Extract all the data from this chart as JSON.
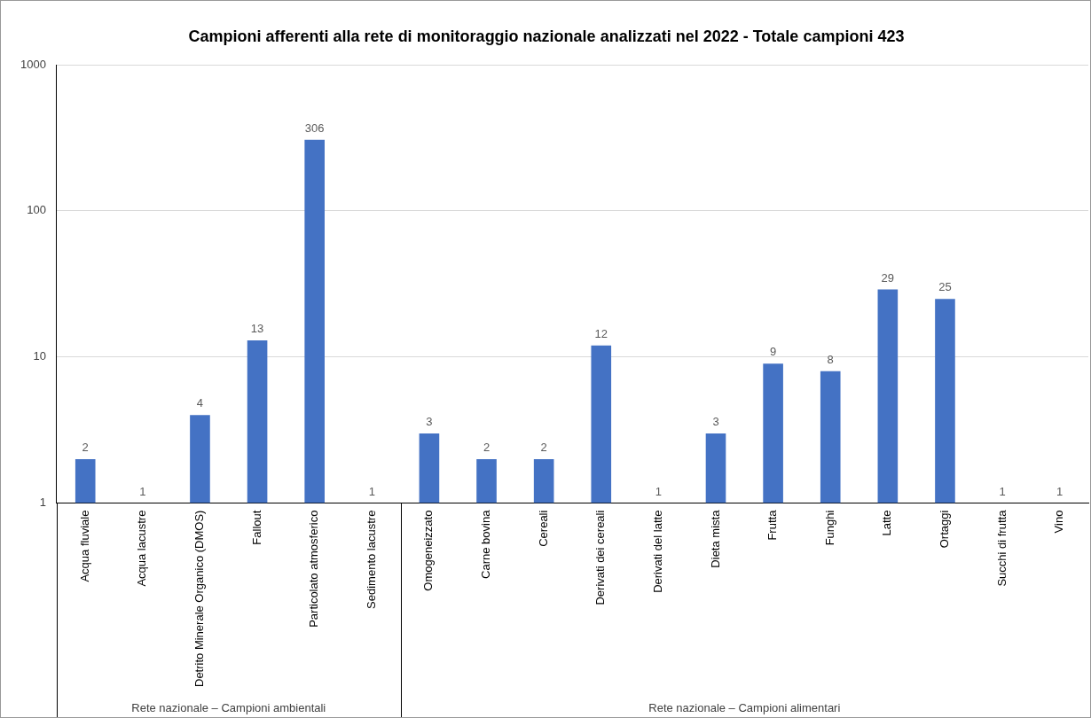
{
  "chart_data": {
    "type": "bar",
    "title": "Campioni afferenti alla rete di monitoraggio nazionale analizzati nel 2022 - Totale campioni 423",
    "categories": [
      "Acqua fluviale",
      "Acqua lacustre",
      "Detrito Minerale Organico (DMOS)",
      "Fallout",
      "Particolato atmosferico",
      "Sedimento lacustre",
      "Omogeneizzato",
      "Carne bovina",
      "Cereali",
      "Derivati dei cereali",
      "Derivati del latte",
      "Dieta mista",
      "Frutta",
      "Funghi",
      "Latte",
      "Ortaggi",
      "Succhi di frutta",
      "Vino"
    ],
    "values": [
      2,
      1,
      4,
      13,
      306,
      1,
      3,
      2,
      2,
      12,
      1,
      3,
      9,
      8,
      29,
      25,
      1,
      1
    ],
    "color": "#4472c4",
    "log": true,
    "ylim": [
      1,
      1000
    ],
    "yticks": [
      1,
      10,
      100,
      1000
    ],
    "grid": "y",
    "data_labels": true,
    "annotations": [
      "Rete nazionale – Campioni ambientali",
      "Rete nazionale – Campioni alimentari"
    ]
  }
}
